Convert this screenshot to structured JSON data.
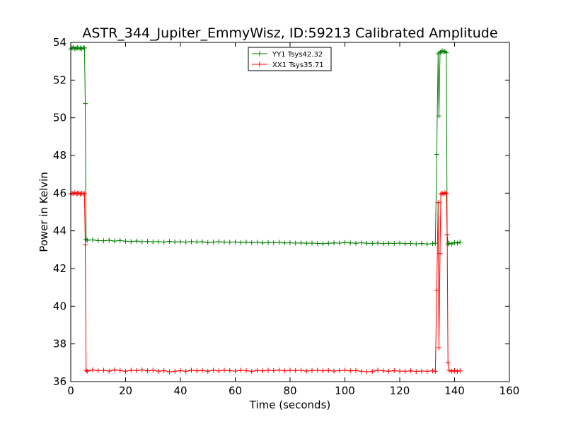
{
  "chart_data": {
    "type": "line",
    "title": "ASTR_344_Jupiter_EmmyWisz, ID:59213 Calibrated Amplitude",
    "xlabel": "Time (seconds)",
    "ylabel": "Power in Kelvin",
    "xlim": [
      0,
      160
    ],
    "ylim": [
      36,
      54
    ],
    "xticks": [
      "0",
      "20",
      "40",
      "60",
      "80",
      "100",
      "120",
      "140",
      "160"
    ],
    "yticks": [
      "36",
      "38",
      "40",
      "42",
      "44",
      "46",
      "48",
      "50",
      "52",
      "54"
    ],
    "grid": false,
    "legend": {
      "placement": "top-center"
    },
    "series": [
      {
        "name": "YY1 Tsys42.32",
        "color": "#008000",
        "x": [
          0,
          0.5,
          1,
          1.5,
          2,
          2.5,
          3,
          3.5,
          4,
          4.5,
          5,
          5.3,
          5.6,
          6,
          8,
          10,
          12,
          14,
          16,
          18,
          20,
          22,
          24,
          26,
          28,
          30,
          32,
          34,
          36,
          38,
          40,
          42,
          44,
          46,
          48,
          50,
          52,
          54,
          56,
          58,
          60,
          62,
          64,
          66,
          68,
          70,
          72,
          74,
          76,
          78,
          80,
          82,
          84,
          86,
          88,
          90,
          92,
          94,
          96,
          98,
          100,
          102,
          104,
          106,
          108,
          110,
          112,
          114,
          116,
          118,
          120,
          122,
          124,
          126,
          128,
          130,
          132,
          133,
          133.5,
          134,
          134.3,
          134.7,
          135,
          135.5,
          136,
          136.5,
          137,
          137.3,
          137.6,
          138,
          139,
          140,
          141,
          142
        ],
        "y": [
          53.65,
          53.7,
          53.75,
          53.65,
          53.7,
          53.72,
          53.68,
          53.7,
          53.66,
          53.72,
          53.7,
          50.75,
          43.55,
          43.5,
          43.52,
          43.48,
          43.47,
          43.5,
          43.46,
          43.49,
          43.45,
          43.43,
          43.46,
          43.42,
          43.44,
          43.41,
          43.43,
          43.4,
          43.44,
          43.41,
          43.42,
          43.4,
          43.43,
          43.41,
          43.42,
          43.38,
          43.4,
          43.43,
          43.4,
          43.39,
          43.41,
          43.38,
          43.4,
          43.37,
          43.39,
          43.36,
          43.38,
          43.37,
          43.39,
          43.36,
          43.37,
          43.35,
          43.36,
          43.34,
          43.35,
          43.33,
          43.32,
          43.34,
          43.36,
          43.35,
          43.38,
          43.36,
          43.34,
          43.37,
          43.34,
          43.33,
          43.35,
          43.32,
          43.34,
          43.33,
          43.35,
          43.32,
          43.33,
          43.31,
          43.33,
          43.3,
          43.32,
          43.34,
          48.05,
          53.4,
          50.1,
          53.45,
          53.5,
          53.55,
          53.5,
          53.52,
          53.45,
          43.8,
          43.3,
          43.35,
          43.3,
          43.38,
          43.35,
          43.4
        ]
      },
      {
        "name": "XX1 Tsys35.71",
        "color": "#ff0000",
        "x": [
          0,
          0.5,
          1,
          1.5,
          2,
          2.5,
          3,
          3.5,
          4,
          4.5,
          5,
          5.3,
          5.6,
          6,
          8,
          10,
          12,
          14,
          16,
          18,
          20,
          22,
          24,
          26,
          28,
          30,
          32,
          34,
          36,
          38,
          40,
          42,
          44,
          46,
          48,
          50,
          52,
          54,
          56,
          58,
          60,
          62,
          64,
          66,
          68,
          70,
          72,
          74,
          76,
          78,
          80,
          82,
          84,
          86,
          88,
          90,
          92,
          94,
          96,
          98,
          100,
          102,
          104,
          106,
          108,
          110,
          112,
          114,
          116,
          118,
          120,
          122,
          124,
          126,
          128,
          130,
          132,
          133,
          133.5,
          134,
          134.3,
          134.7,
          135,
          135.5,
          136,
          136.5,
          137,
          137.3,
          137.6,
          138,
          139,
          140,
          141,
          142
        ],
        "y": [
          45.95,
          46.0,
          45.97,
          46.02,
          45.96,
          45.99,
          46.01,
          45.95,
          46.0,
          45.98,
          45.97,
          43.25,
          36.6,
          36.55,
          36.62,
          36.58,
          36.6,
          36.56,
          36.62,
          36.59,
          36.55,
          36.6,
          36.58,
          36.62,
          36.57,
          36.6,
          36.55,
          36.58,
          36.52,
          36.55,
          36.58,
          36.55,
          36.6,
          36.57,
          36.59,
          36.55,
          36.6,
          36.57,
          36.6,
          36.58,
          36.56,
          36.6,
          36.58,
          36.55,
          36.59,
          36.57,
          36.6,
          36.58,
          36.61,
          36.57,
          36.6,
          36.58,
          36.6,
          36.56,
          36.58,
          36.6,
          36.57,
          36.59,
          36.56,
          36.58,
          36.6,
          36.57,
          36.59,
          36.55,
          36.52,
          36.55,
          36.6,
          36.57,
          36.55,
          36.58,
          36.56,
          36.55,
          36.57,
          36.54,
          36.56,
          36.55,
          36.57,
          36.55,
          40.85,
          45.5,
          37.8,
          42.8,
          45.95,
          46.0,
          45.95,
          46.02,
          45.98,
          43.8,
          37.0,
          36.6,
          36.55,
          36.58,
          36.55,
          36.57
        ]
      }
    ]
  }
}
